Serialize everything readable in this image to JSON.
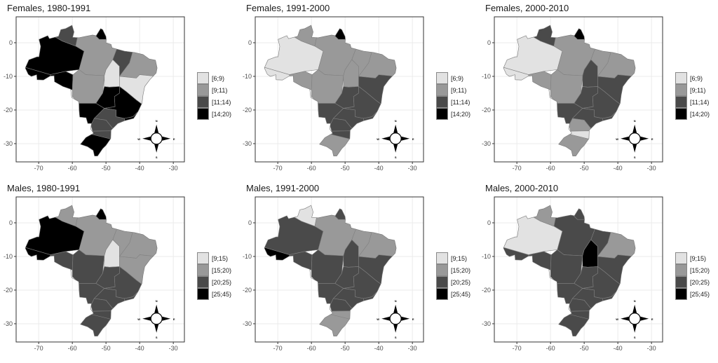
{
  "colors": [
    "#e2e2e2",
    "#999999",
    "#4a4a4a",
    "#000000"
  ],
  "x_ticks": [
    -70,
    -60,
    -50,
    -40,
    -30
  ],
  "y_ticks": [
    0,
    -10,
    -20,
    -30
  ],
  "compass": {
    "n": "N",
    "s": "S",
    "e": "E",
    "w": "W"
  },
  "regions": [
    "AC",
    "AM",
    "RR",
    "PA",
    "AP",
    "RO",
    "MT",
    "TO",
    "MA",
    "NE",
    "BA",
    "GO",
    "MG",
    "ESRJ",
    "MS",
    "SP",
    "PR",
    "SC",
    "RS"
  ],
  "panels": [
    {
      "title": "Females, 1980-1991",
      "legend": [
        "[6;9)",
        "[9;11)",
        "[11;14)",
        "[14;20)"
      ],
      "categories": [
        3,
        3,
        2,
        1,
        3,
        3,
        1,
        0,
        2,
        1,
        0,
        3,
        3,
        3,
        3,
        2,
        2,
        2,
        3
      ]
    },
    {
      "title": "Females, 1991-2000",
      "legend": [
        "[6;9)",
        "[9;11)",
        "[11;14)",
        "[14;20)"
      ],
      "categories": [
        0,
        0,
        1,
        1,
        3,
        1,
        1,
        1,
        1,
        1,
        2,
        2,
        2,
        2,
        2,
        2,
        2,
        2,
        1
      ]
    },
    {
      "title": "Females, 2000-2010",
      "legend": [
        "[6;9)",
        "[9;11)",
        "[11;14)",
        "[14;20)"
      ],
      "categories": [
        0,
        0,
        2,
        1,
        3,
        1,
        1,
        2,
        1,
        1,
        2,
        2,
        2,
        2,
        2,
        2,
        1,
        0,
        1
      ]
    },
    {
      "title": "Males, 1980-1991",
      "legend": [
        "[9;15)",
        "[15;20)",
        "[20;25)",
        "[25;45)"
      ],
      "categories": [
        3,
        3,
        1,
        1,
        3,
        2,
        2,
        0,
        1,
        1,
        1,
        2,
        2,
        2,
        2,
        2,
        2,
        2,
        2
      ]
    },
    {
      "title": "Males, 1991-2000",
      "legend": [
        "[9;15)",
        "[15;20)",
        "[20;25)",
        "[25;45)"
      ],
      "categories": [
        3,
        2,
        0,
        1,
        2,
        2,
        2,
        2,
        1,
        1,
        2,
        2,
        2,
        2,
        2,
        2,
        2,
        1,
        1
      ]
    },
    {
      "title": "Males, 2000-2010",
      "legend": [
        "[9;15)",
        "[15;20)",
        "[20;25)",
        "[25;45)"
      ],
      "categories": [
        2,
        0,
        1,
        2,
        2,
        2,
        2,
        3,
        2,
        1,
        2,
        2,
        2,
        2,
        2,
        2,
        2,
        2,
        2
      ]
    }
  ]
}
